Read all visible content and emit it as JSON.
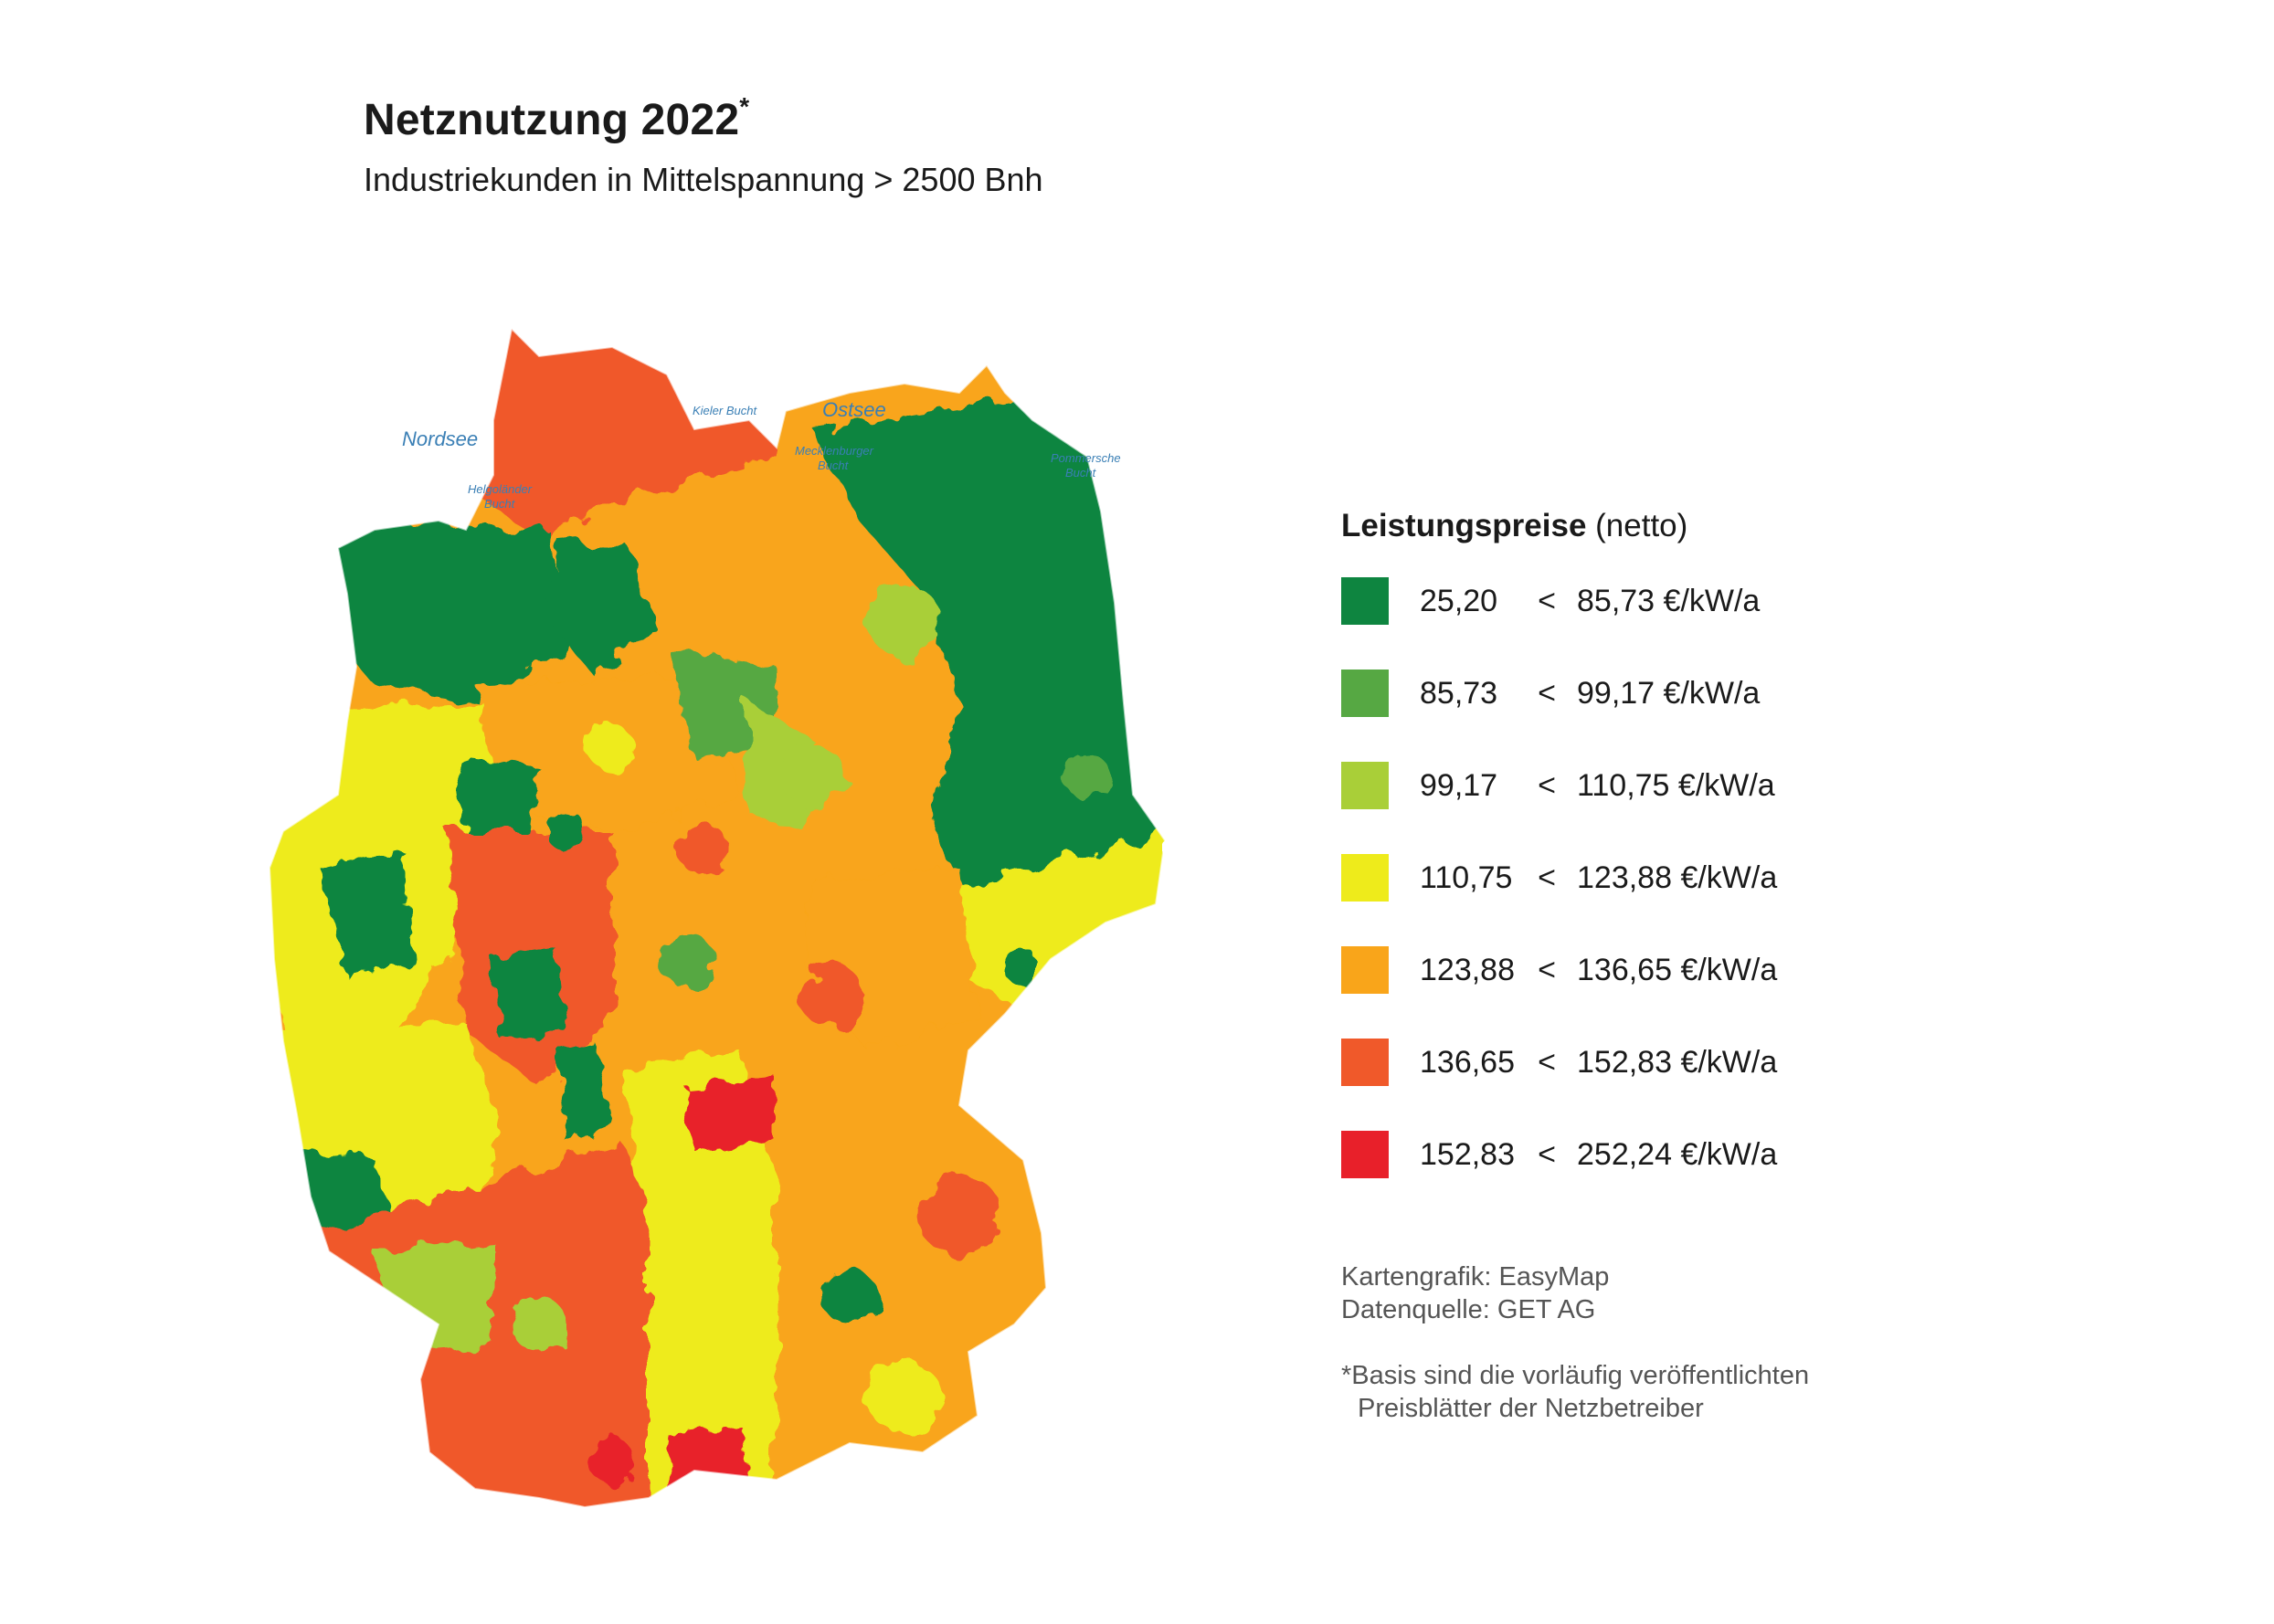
{
  "title": "Netznutzung 2022",
  "title_mark": "*",
  "subtitle": "Industriekunden in Mittelspannung > 2500 Bnh",
  "seas": {
    "nordsee": "Nordsee",
    "ostsee": "Ostsee",
    "kieler_bucht": "Kieler Bucht",
    "helgolaender_bucht": [
      "Helgoländer",
      "Bucht"
    ],
    "mecklenburger_bucht": [
      "Mecklenburger",
      "Bucht"
    ],
    "pommersche_bucht": [
      "Pommersche",
      "Bucht"
    ]
  },
  "legend": {
    "title_bold": "Leistungspreise",
    "title_rest": " (netto)",
    "items": [
      {
        "min": "25,20",
        "sep": "<",
        "max": "85,73 €/kW/a",
        "color": "#0e8540"
      },
      {
        "min": "85,73",
        "sep": "<",
        "max": "99,17 €/kW/a",
        "color": "#56a843"
      },
      {
        "min": "99,17",
        "sep": "<",
        "max": "110,75 €/kW/a",
        "color": "#a9cf38"
      },
      {
        "min": "110,75",
        "sep": "<",
        "max": "123,88 €/kW/a",
        "color": "#eeeb1b"
      },
      {
        "min": "123,88",
        "sep": "<",
        "max": "136,65 €/kW/a",
        "color": "#f9a51a"
      },
      {
        "min": "136,65",
        "sep": "<",
        "max": "152,83 €/kW/a",
        "color": "#f0592a"
      },
      {
        "min": "152,83",
        "sep": "<",
        "max": "252,24 €/kW/a",
        "color": "#e8202a"
      }
    ]
  },
  "source": {
    "line1": "Kartengrafik: EasyMap",
    "line2": "Datenquelle: GET AG"
  },
  "footnote": {
    "line1": "*Basis sind die vorläufig veröffentlichten",
    "line2": "Preisblätter der Netzbetreiber"
  }
}
